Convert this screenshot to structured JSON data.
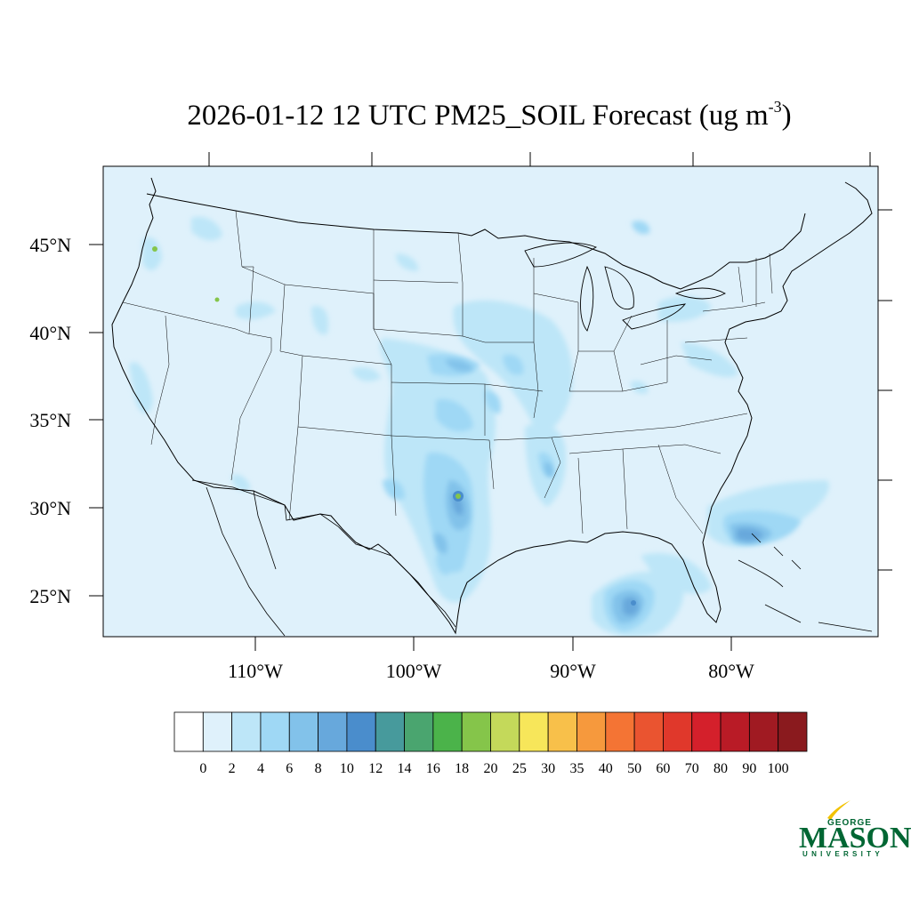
{
  "title": {
    "main": "2026-01-12 12 UTC PM25_SOIL Forecast (ug m",
    "sup": "-3",
    "close": ")"
  },
  "map": {
    "background_color": "#dff1fb",
    "lat_labels": [
      "45°N",
      "40°N",
      "35°N",
      "30°N",
      "25°N"
    ],
    "lon_labels": [
      "110°W",
      "100°W",
      "90°W",
      "80°W"
    ]
  },
  "colorbar": {
    "levels": [
      "0",
      "2",
      "4",
      "6",
      "8",
      "10",
      "12",
      "14",
      "16",
      "18",
      "20",
      "25",
      "30",
      "35",
      "40",
      "50",
      "60",
      "70",
      "80",
      "90",
      "100"
    ],
    "colors": [
      "#ffffff",
      "#dff1fb",
      "#bde6f8",
      "#9fd8f5",
      "#82c2ea",
      "#67a8dc",
      "#4a8dcc",
      "#479a9c",
      "#4aa56f",
      "#4bb34a",
      "#85c54a",
      "#c4d95a",
      "#f7e65a",
      "#f8c04a",
      "#f6993d",
      "#f47434",
      "#ea5430",
      "#e0382b",
      "#d4202b",
      "#b91b26",
      "#a01a22",
      "#8a1a1e"
    ]
  },
  "logo": {
    "line1": "GEORGE",
    "line2": "MASON",
    "line3": "UNIVERSITY"
  }
}
